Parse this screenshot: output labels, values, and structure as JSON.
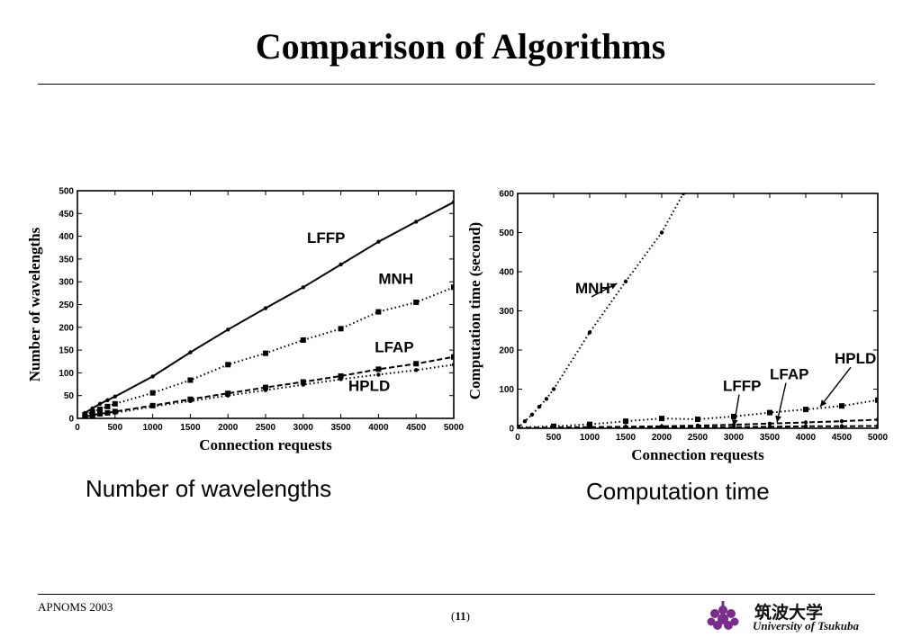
{
  "title": "Comparison of Algorithms",
  "captions": {
    "left": "Number of wavelengths",
    "right": "Computation time"
  },
  "footer": {
    "left": "APNOMS 2003",
    "page": "11",
    "logo_jp": "筑波大学",
    "logo_en": "University of Tsukuba"
  },
  "colors": {
    "text": "#000000",
    "logo": "#7b2d8e"
  },
  "chart_data": [
    {
      "type": "line",
      "title": "",
      "xlabel": "Connection requests",
      "ylabel": "Number of wavelengths",
      "xlim": [
        0,
        5000
      ],
      "ylim": [
        0,
        500
      ],
      "xticks": [
        0,
        500,
        1000,
        1500,
        2000,
        2500,
        3000,
        3500,
        4000,
        4500,
        5000
      ],
      "yticks": [
        0,
        50,
        100,
        150,
        200,
        250,
        300,
        350,
        400,
        450,
        500
      ],
      "series": [
        {
          "name": "LFFP",
          "style": "solid",
          "marker": "dot",
          "x": [
            100,
            200,
            300,
            400,
            500,
            1000,
            1500,
            2000,
            2500,
            3000,
            3500,
            4000,
            4500,
            5000
          ],
          "y": [
            12,
            22,
            32,
            40,
            48,
            92,
            145,
            195,
            242,
            288,
            338,
            388,
            432,
            475
          ]
        },
        {
          "name": "MNH",
          "style": "dotted",
          "marker": "square",
          "x": [
            100,
            200,
            300,
            400,
            500,
            1000,
            1500,
            2000,
            2500,
            3000,
            3500,
            4000,
            4500,
            5000
          ],
          "y": [
            8,
            14,
            20,
            26,
            32,
            56,
            84,
            118,
            143,
            172,
            197,
            234,
            255,
            288
          ]
        },
        {
          "name": "LFAP",
          "style": "dashed",
          "marker": "square",
          "x": [
            100,
            200,
            300,
            400,
            500,
            1000,
            1500,
            2000,
            2500,
            3000,
            3500,
            4000,
            4500,
            5000
          ],
          "y": [
            4,
            7,
            10,
            12,
            15,
            28,
            42,
            55,
            68,
            80,
            93,
            108,
            120,
            135
          ]
        },
        {
          "name": "HPLD",
          "style": "dotted",
          "marker": "dot",
          "x": [
            100,
            200,
            300,
            400,
            500,
            1000,
            1500,
            2000,
            2500,
            3000,
            3500,
            4000,
            4500,
            5000
          ],
          "y": [
            3,
            6,
            8,
            10,
            12,
            26,
            38,
            50,
            62,
            74,
            86,
            96,
            106,
            118
          ]
        }
      ],
      "annotations": [
        {
          "text": "LFFP",
          "x": 3050,
          "y": 385
        },
        {
          "text": "MNH",
          "x": 4000,
          "y": 295
        },
        {
          "text": "LFAP",
          "x": 3950,
          "y": 145
        },
        {
          "text": "HPLD",
          "x": 3600,
          "y": 60
        }
      ]
    },
    {
      "type": "line",
      "title": "",
      "xlabel": "Connection requests",
      "ylabel": "Computation time (second)",
      "xlim": [
        0,
        5000
      ],
      "ylim": [
        0,
        600
      ],
      "xticks": [
        0,
        500,
        1000,
        1500,
        2000,
        2500,
        3000,
        3500,
        4000,
        4500,
        5000
      ],
      "yticks": [
        0,
        100,
        200,
        300,
        400,
        500,
        600
      ],
      "series": [
        {
          "name": "MNH",
          "style": "dotted",
          "marker": "dot",
          "x": [
            0,
            100,
            200,
            300,
            400,
            500,
            1000,
            1500,
            2000,
            2300
          ],
          "y": [
            0,
            18,
            35,
            55,
            75,
            100,
            245,
            375,
            500,
            600
          ]
        },
        {
          "name": "LFFP",
          "style": "dotted",
          "marker": "square",
          "x": [
            0,
            500,
            1000,
            1500,
            2000,
            2500,
            3000,
            3500,
            4000,
            4500,
            5000
          ],
          "y": [
            2,
            5,
            10,
            18,
            25,
            23,
            30,
            40,
            48,
            57,
            72
          ]
        },
        {
          "name": "LFAP",
          "style": "dashed",
          "marker": "dot",
          "x": [
            0,
            500,
            1000,
            1500,
            2000,
            2500,
            3000,
            3500,
            4000,
            4500,
            5000
          ],
          "y": [
            1,
            2,
            3,
            4,
            5,
            7,
            9,
            12,
            15,
            18,
            22
          ]
        },
        {
          "name": "HPLD",
          "style": "dashed",
          "marker": "dot",
          "x": [
            0,
            500,
            1000,
            1500,
            2000,
            2500,
            3000,
            3500,
            4000,
            4500,
            5000
          ],
          "y": [
            0,
            1,
            1,
            2,
            2,
            3,
            3,
            4,
            5,
            5,
            6
          ]
        }
      ],
      "annotations": [
        {
          "text": "MNH",
          "x": 800,
          "y": 345,
          "ax": 1380,
          "ay": 370
        },
        {
          "text": "LFFP",
          "x": 2850,
          "y": 95,
          "ax": 3000,
          "ay": 5
        },
        {
          "text": "LFAP",
          "x": 3500,
          "y": 125,
          "ax": 3600,
          "ay": 15
        },
        {
          "text": "HPLD",
          "x": 4400,
          "y": 165,
          "ax": 4200,
          "ay": 55
        }
      ]
    }
  ]
}
